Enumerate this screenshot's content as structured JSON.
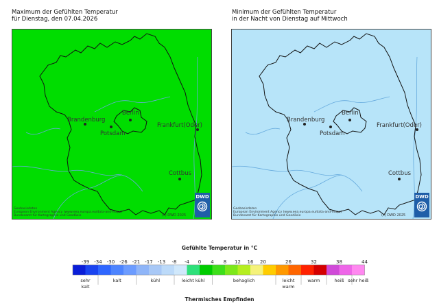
{
  "maps": [
    {
      "title_line1": "Maximum der Gefühlten Temperatur",
      "title_line2": "für Dienstag, den 07.04.2026",
      "fill": "#00dd00",
      "river": "#66aadd",
      "cities": {
        "berlin": "Berlin",
        "potsdam": "Potsdam",
        "brandenburg": "Brandenburg",
        "frankfurt": "Frankfurt(Oder)",
        "cottbus": "Cottbus"
      },
      "credit_line1": "Geobasisdaten",
      "credit_line2": "European Environment Agency (www.eea.europa.eu/data-and-maps)",
      "credit_line3": "Bundesamt für Kartographie und Geodäsie",
      "copyright": "(c) DWD 2025",
      "logo": "DWD"
    },
    {
      "title_line1": "Minimum der Gefühlten Temperatur",
      "title_line2": "in der Nacht von Dienstag auf Mittwoch",
      "fill": "#b7e4f9",
      "river": "#66aadd",
      "cities": {
        "berlin": "Berlin",
        "potsdam": "Potsdam",
        "brandenburg": "Brandenburg",
        "frankfurt": "Frankfurt(Oder)",
        "cottbus": "Cottbus"
      },
      "credit_line1": "Geobasisdaten",
      "credit_line2": "European Environment Agency (www.eea.europa.eu/data-and-maps)",
      "credit_line3": "Bundesamt für Kartographie und Geodäsie",
      "copyright": "(c) DWD 2025",
      "logo": "DWD"
    }
  ],
  "legend": {
    "title": "Gefühlte Temperatur in °C",
    "footer": "Thermisches Empfinden",
    "colors": [
      "#0a1ed8",
      "#1a44f0",
      "#2e66ff",
      "#4d84ff",
      "#6c9cff",
      "#8fb5f8",
      "#a8c8f6",
      "#bcdaf9",
      "#d0e8fb",
      "#2ee07a",
      "#00cc00",
      "#3ddf1a",
      "#7de81a",
      "#b5ee20",
      "#f5f27a",
      "#ffcc00",
      "#ff9900",
      "#ff6600",
      "#ff2200",
      "#d40000",
      "#d04ad8",
      "#ee66e8",
      "#ff88f0"
    ],
    "ticks": [
      "-39",
      "-34",
      "-30",
      "-26",
      "-21",
      "-17",
      "-13",
      "-8",
      "-4",
      "0",
      "4",
      "8",
      "12",
      "16",
      "20",
      "26",
      "32",
      "38",
      "44"
    ],
    "categories": [
      {
        "l1": "sehr",
        "l2": "kalt"
      },
      {
        "l1": "kalt",
        "l2": ""
      },
      {
        "l1": "kühl",
        "l2": ""
      },
      {
        "l1": "leicht kühl",
        "l2": ""
      },
      {
        "l1": "behaglich",
        "l2": ""
      },
      {
        "l1": "leicht",
        "l2": "warm"
      },
      {
        "l1": "warm",
        "l2": ""
      },
      {
        "l1": "heiß",
        "l2": ""
      },
      {
        "l1": "sehr heiß",
        "l2": ""
      }
    ]
  }
}
